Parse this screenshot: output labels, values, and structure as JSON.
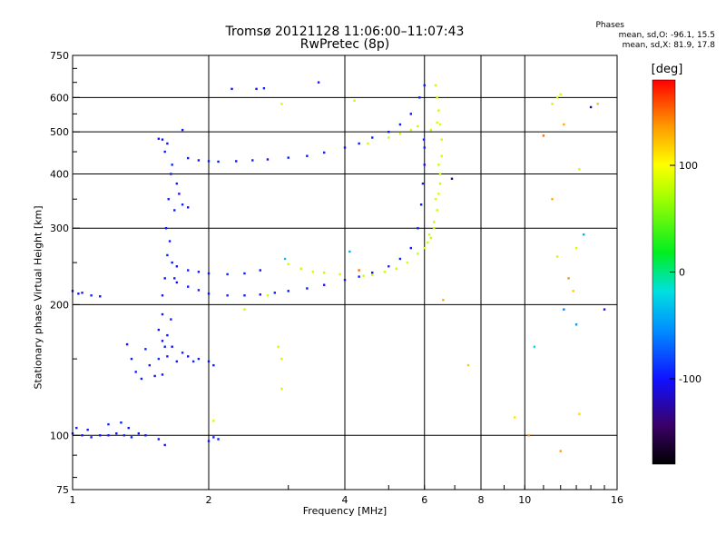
{
  "chart_data": {
    "type": "scatter",
    "title": "Tromsø 20121128 11:06:00–11:07:43",
    "subtitle": "RwPretec (8p)",
    "xlabel": "Frequency [MHz]",
    "ylabel": "Stationary phase Virtual Height [km]",
    "x_scale": "log",
    "y_scale": "log",
    "xlim": [
      1,
      16
    ],
    "ylim": [
      75,
      750
    ],
    "x_ticks": [
      1,
      2,
      4,
      6,
      8,
      10,
      16
    ],
    "x_tick_labels": [
      "1",
      "2",
      "4",
      "6",
      "8",
      "10",
      "16"
    ],
    "x_grid": [
      2,
      4,
      6,
      8,
      10
    ],
    "y_ticks": [
      75,
      100,
      200,
      300,
      400,
      500,
      600,
      750
    ],
    "y_tick_labels": [
      "75",
      "100",
      "200",
      "300",
      "400",
      "500",
      "600",
      "750"
    ],
    "y_grid": [
      100,
      200,
      300,
      400,
      500,
      600
    ],
    "grid": true,
    "phases_panel": {
      "title": "Phases",
      "o_line": "mean, sd,O: -96.1, 15.5",
      "x_line": "mean, sd,X: 81.9, 17.8"
    },
    "colorbar": {
      "title": "[deg]",
      "range": [
        -180,
        180
      ],
      "ticks": [
        100,
        0,
        -100
      ],
      "tick_labels": [
        "100",
        "0",
        "-100"
      ]
    },
    "series": [
      {
        "points": [
          [
            1.0,
            101,
            -98
          ],
          [
            1.05,
            100,
            -100
          ],
          [
            1.1,
            99,
            -96
          ],
          [
            1.15,
            100,
            -102
          ],
          [
            1.2,
            100,
            -98
          ],
          [
            1.25,
            101,
            -100
          ],
          [
            1.3,
            100,
            -95
          ],
          [
            1.35,
            99,
            -97
          ],
          [
            1.4,
            101,
            -102
          ],
          [
            1.45,
            100,
            -99
          ],
          [
            1.02,
            104,
            -95
          ],
          [
            1.08,
            103,
            -100
          ],
          [
            1.2,
            106,
            -92
          ],
          [
            1.28,
            107,
            -98
          ],
          [
            1.33,
            104,
            -100
          ],
          [
            1.0,
            215,
            -100
          ],
          [
            1.05,
            213,
            -98
          ],
          [
            1.1,
            210,
            -95
          ],
          [
            1.15,
            209,
            -102
          ],
          [
            1.03,
            212,
            -100
          ],
          [
            1.32,
            162,
            -100
          ],
          [
            1.35,
            150,
            -98
          ],
          [
            1.38,
            140,
            -96
          ],
          [
            1.42,
            135,
            -100
          ],
          [
            1.45,
            158,
            -94
          ],
          [
            1.48,
            145,
            -99
          ],
          [
            1.52,
            137,
            -100
          ],
          [
            1.55,
            150,
            -92
          ],
          [
            1.58,
            138,
            -100
          ],
          [
            1.62,
            152,
            -96
          ],
          [
            1.66,
            160,
            -100
          ],
          [
            1.7,
            148,
            -98
          ],
          [
            1.75,
            155,
            -95
          ],
          [
            1.8,
            152,
            -100
          ],
          [
            1.85,
            148,
            -92
          ],
          [
            1.9,
            150,
            -98
          ],
          [
            2.0,
            148,
            -100
          ],
          [
            2.05,
            145,
            -96
          ],
          [
            1.55,
            175,
            -102
          ],
          [
            1.58,
            190,
            -98
          ],
          [
            1.62,
            170,
            -100
          ],
          [
            1.65,
            185,
            -96
          ],
          [
            1.58,
            165,
            -100
          ],
          [
            1.6,
            160,
            -95
          ],
          [
            1.58,
            210,
            -100
          ],
          [
            1.6,
            230,
            -98
          ],
          [
            1.62,
            260,
            -96
          ],
          [
            1.61,
            300,
            -100
          ],
          [
            1.63,
            350,
            -95
          ],
          [
            1.65,
            400,
            -100
          ],
          [
            1.6,
            450,
            -98
          ],
          [
            1.58,
            480,
            -102
          ],
          [
            1.62,
            470,
            -100
          ],
          [
            1.66,
            420,
            -94
          ],
          [
            1.7,
            380,
            -96
          ],
          [
            1.72,
            360,
            -100
          ],
          [
            1.68,
            330,
            -98
          ],
          [
            1.75,
            340,
            -95
          ],
          [
            1.8,
            335,
            -100
          ],
          [
            1.64,
            280,
            -98
          ],
          [
            1.66,
            250,
            -100
          ],
          [
            1.68,
            230,
            -96
          ],
          [
            1.7,
            225,
            -100
          ],
          [
            1.8,
            220,
            -98
          ],
          [
            1.9,
            216,
            -96
          ],
          [
            2.0,
            212,
            -100
          ],
          [
            2.2,
            210,
            -95
          ],
          [
            2.4,
            210,
            -98
          ],
          [
            2.6,
            211,
            -100
          ],
          [
            2.8,
            213,
            -96
          ],
          [
            3.0,
            215,
            -100
          ],
          [
            3.3,
            218,
            -98
          ],
          [
            3.6,
            222,
            -100
          ],
          [
            4.0,
            228,
            -96
          ],
          [
            4.3,
            232,
            -98
          ],
          [
            4.6,
            237,
            -100
          ],
          [
            5.0,
            245,
            -95
          ],
          [
            5.3,
            255,
            -98
          ],
          [
            5.6,
            270,
            -100
          ],
          [
            5.8,
            300,
            -96
          ],
          [
            5.9,
            340,
            -100
          ],
          [
            5.95,
            380,
            -98
          ],
          [
            6.0,
            420,
            -100
          ],
          [
            6.0,
            460,
            -95
          ],
          [
            5.98,
            480,
            -98
          ],
          [
            1.7,
            245,
            -100
          ],
          [
            1.8,
            240,
            -96
          ],
          [
            1.9,
            238,
            -98
          ],
          [
            2.0,
            236,
            -100
          ],
          [
            2.2,
            235,
            -95
          ],
          [
            2.4,
            236,
            -98
          ],
          [
            2.6,
            240,
            -100
          ],
          [
            1.8,
            435,
            -98
          ],
          [
            1.9,
            430,
            -100
          ],
          [
            2.0,
            428,
            -96
          ],
          [
            2.1,
            427,
            -100
          ],
          [
            2.3,
            428,
            -98
          ],
          [
            2.5,
            430,
            -95
          ],
          [
            2.7,
            432,
            -100
          ],
          [
            3.0,
            436,
            -98
          ],
          [
            3.3,
            440,
            -100
          ],
          [
            3.6,
            448,
            -96
          ],
          [
            4.0,
            460,
            -100
          ],
          [
            4.3,
            470,
            -98
          ],
          [
            4.6,
            485,
            -95
          ],
          [
            5.0,
            500,
            -100
          ],
          [
            5.3,
            520,
            -98
          ],
          [
            5.6,
            550,
            -100
          ],
          [
            5.85,
            600,
            -96
          ],
          [
            6.0,
            640,
            -100
          ],
          [
            2.25,
            628,
            -100
          ],
          [
            2.55,
            628,
            -98
          ],
          [
            2.65,
            630,
            -96
          ],
          [
            3.5,
            650,
            -100
          ],
          [
            1.55,
            482,
            -102
          ],
          [
            1.75,
            505,
            -98
          ],
          [
            1.55,
            98,
            -100
          ],
          [
            1.6,
            95,
            -98
          ],
          [
            2.0,
            97,
            -100
          ],
          [
            2.05,
            99,
            -96
          ],
          [
            2.1,
            98,
            -98
          ]
        ]
      },
      {
        "points": [
          [
            3.0,
            248,
            82
          ],
          [
            3.2,
            242,
            80
          ],
          [
            3.4,
            238,
            84
          ],
          [
            3.6,
            237,
            78
          ],
          [
            3.9,
            235,
            85
          ],
          [
            4.4,
            233,
            80
          ],
          [
            4.6,
            234,
            84
          ],
          [
            4.9,
            238,
            82
          ],
          [
            5.2,
            242,
            78
          ],
          [
            5.5,
            250,
            85
          ],
          [
            5.8,
            262,
            80
          ],
          [
            6.0,
            270,
            83
          ],
          [
            6.2,
            285,
            79
          ],
          [
            6.3,
            300,
            84
          ],
          [
            6.4,
            330,
            82
          ],
          [
            6.45,
            360,
            86
          ],
          [
            6.5,
            400,
            80
          ],
          [
            6.55,
            440,
            84
          ],
          [
            6.55,
            480,
            82
          ],
          [
            6.5,
            520,
            88
          ],
          [
            6.45,
            560,
            80
          ],
          [
            6.4,
            600,
            85
          ],
          [
            6.35,
            640,
            82
          ],
          [
            6.1,
            278,
            80
          ],
          [
            6.15,
            290,
            84
          ],
          [
            6.3,
            310,
            78
          ],
          [
            6.35,
            350,
            86
          ],
          [
            6.5,
            380,
            82
          ],
          [
            6.45,
            420,
            80
          ],
          [
            5.0,
            485,
            82
          ],
          [
            5.3,
            495,
            80
          ],
          [
            5.6,
            505,
            84
          ],
          [
            5.8,
            515,
            78
          ],
          [
            4.5,
            470,
            85
          ],
          [
            6.2,
            505,
            80
          ],
          [
            6.4,
            525,
            86
          ],
          [
            2.9,
            580,
            82
          ],
          [
            4.2,
            590,
            80
          ],
          [
            12.0,
            610,
            84
          ],
          [
            11.8,
            600,
            82
          ],
          [
            11.5,
            580,
            78
          ],
          [
            13.2,
            410,
            80
          ],
          [
            13.0,
            270,
            84
          ],
          [
            11.8,
            258,
            82
          ],
          [
            2.85,
            160,
            84
          ],
          [
            2.9,
            150,
            82
          ],
          [
            2.9,
            128,
            80
          ],
          [
            2.05,
            108,
            85
          ],
          [
            2.4,
            195,
            80
          ],
          [
            2.7,
            210,
            84
          ]
        ]
      },
      {
        "points": [
          [
            12.2,
            520,
            130
          ],
          [
            12.5,
            230,
            140
          ],
          [
            12.8,
            215,
            120
          ],
          [
            11.5,
            350,
            130
          ],
          [
            10.2,
            100,
            140
          ],
          [
            9.5,
            110,
            110
          ],
          [
            7.5,
            145,
            120
          ],
          [
            11.0,
            490,
            150
          ],
          [
            12.0,
            92,
            135
          ],
          [
            14.5,
            580,
            125
          ],
          [
            13.2,
            112,
            115
          ],
          [
            6.6,
            205,
            130
          ],
          [
            4.3,
            240,
            150
          ]
        ]
      },
      {
        "points": [
          [
            12.2,
            195,
            -60
          ],
          [
            13.0,
            180,
            -50
          ],
          [
            15.0,
            195,
            -110
          ],
          [
            13.5,
            290,
            -40
          ],
          [
            10.5,
            160,
            -20
          ],
          [
            14.0,
            570,
            -130
          ],
          [
            6.9,
            390,
            -140
          ],
          [
            2.95,
            255,
            -30
          ],
          [
            4.1,
            265,
            -40
          ]
        ]
      }
    ]
  }
}
